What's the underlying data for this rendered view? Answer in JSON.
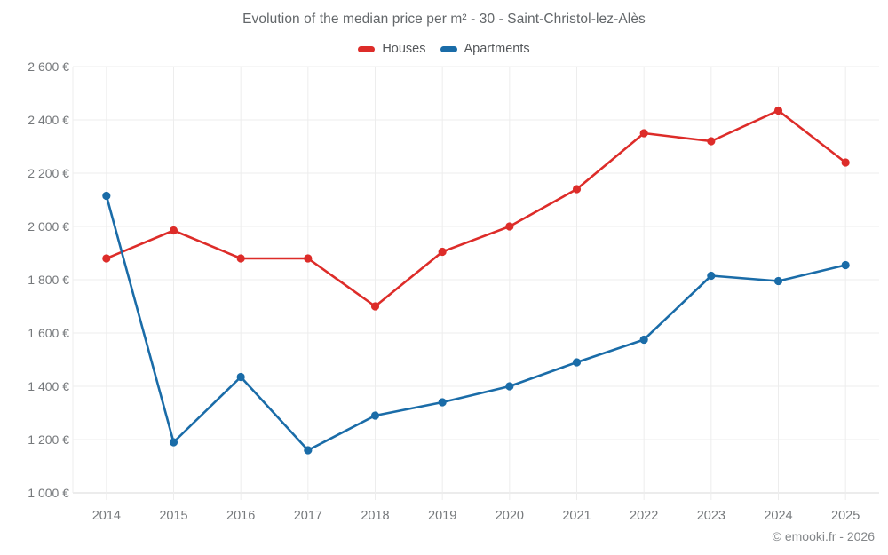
{
  "header": {
    "title": "Evolution of the median price per m² - 30 - Saint-Christol-lez-Alès"
  },
  "footer": {
    "credit": "© emooki.fr - 2026"
  },
  "chart_data": {
    "type": "line",
    "title": "Evolution of the median price per m² - 30 - Saint-Christol-lez-Alès",
    "x": [
      2014,
      2015,
      2016,
      2017,
      2018,
      2019,
      2020,
      2021,
      2022,
      2023,
      2024,
      2025
    ],
    "series": [
      {
        "name": "Houses",
        "color": "#dd2c29",
        "values": [
          1880,
          1985,
          1880,
          1880,
          1700,
          1905,
          2000,
          2140,
          2350,
          2320,
          2435,
          2240
        ]
      },
      {
        "name": "Apartments",
        "color": "#1a6ca8",
        "values": [
          2115,
          1190,
          1435,
          1160,
          1290,
          1340,
          1400,
          1490,
          1575,
          1815,
          1795,
          1855
        ]
      }
    ],
    "xlabel": "",
    "ylabel": "",
    "y_suffix": "€",
    "ylim": [
      1000,
      2600
    ],
    "ytick_step": 200,
    "grid": true,
    "legend_position": "top",
    "colors": {
      "grid": "#ededed",
      "baseline": "#d9d9d9",
      "axis_text": "#76797c"
    }
  }
}
